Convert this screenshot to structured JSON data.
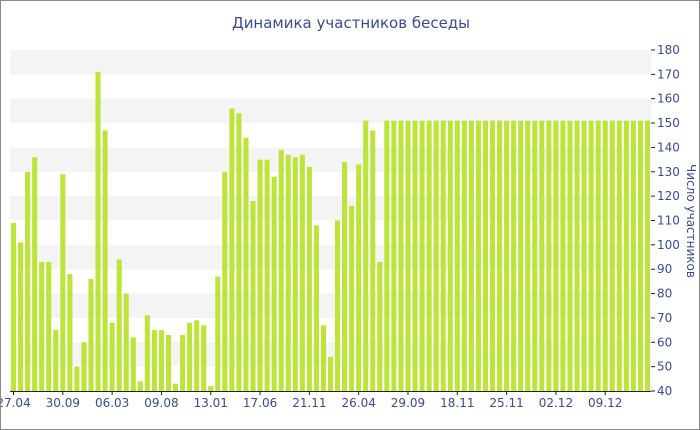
{
  "colors": {
    "bar": "#bde43a",
    "bar_edge": "#a9cf2b",
    "band": "#f4f4f4",
    "text": "#3b4b8c",
    "axis": "#222222"
  },
  "chart_data": {
    "type": "bar",
    "title": "Динамика участников беседы",
    "ylabel": "Число участников",
    "xlabel": "",
    "ylim": [
      40,
      180
    ],
    "yticks": [
      40,
      50,
      60,
      70,
      80,
      90,
      100,
      110,
      120,
      130,
      140,
      150,
      160,
      170,
      180
    ],
    "y_axis_side": "right",
    "grid": "alternating horizontal bands",
    "xtick_labels": [
      {
        "index": 0,
        "label": "27.04"
      },
      {
        "index": 7,
        "label": "30.09"
      },
      {
        "index": 14,
        "label": "06.03"
      },
      {
        "index": 21,
        "label": "09.08"
      },
      {
        "index": 28,
        "label": "13.01"
      },
      {
        "index": 35,
        "label": "17.06"
      },
      {
        "index": 42,
        "label": "21.11"
      },
      {
        "index": 49,
        "label": "26.04"
      },
      {
        "index": 56,
        "label": "29.09"
      },
      {
        "index": 63,
        "label": "18.11"
      },
      {
        "index": 70,
        "label": "25.11"
      },
      {
        "index": 77,
        "label": "02.12"
      },
      {
        "index": 84,
        "label": "09.12"
      }
    ],
    "values": [
      109,
      101,
      130,
      136,
      93,
      93,
      65,
      129,
      88,
      50,
      60,
      86,
      171,
      147,
      68,
      94,
      80,
      62,
      44,
      71,
      65,
      65,
      63,
      43,
      63,
      68,
      69,
      67,
      42,
      87,
      130,
      156,
      154,
      144,
      118,
      135,
      135,
      128,
      139,
      137,
      136,
      137,
      132,
      108,
      67,
      54,
      110,
      134,
      116,
      133,
      151,
      147,
      93,
      151,
      151,
      151,
      151,
      151,
      151,
      151,
      151,
      151,
      151,
      151,
      151,
      151,
      151,
      151,
      151,
      151,
      151,
      151,
      151,
      151,
      151,
      151,
      151,
      151,
      151,
      151,
      151,
      151,
      151,
      151,
      151,
      151,
      151,
      151,
      151,
      151,
      151
    ]
  }
}
